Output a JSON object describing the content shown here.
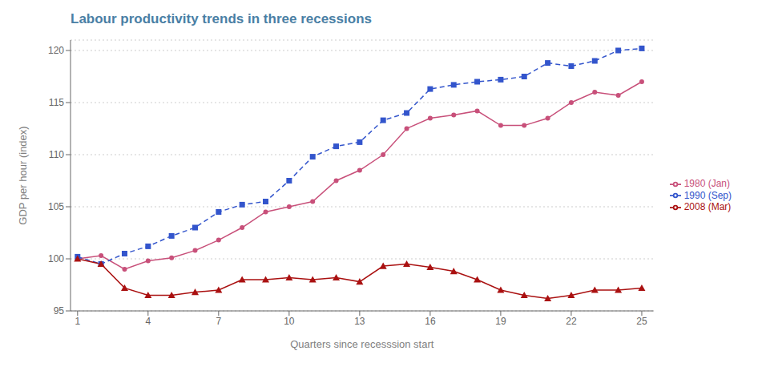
{
  "chart_data": {
    "type": "line",
    "title": "Labour productivity trends in three recessions",
    "x_label": "Quarters since recesssion start",
    "y_label": "GDP per hour (index)",
    "x": [
      1,
      2,
      3,
      4,
      5,
      6,
      7,
      8,
      9,
      10,
      11,
      12,
      13,
      14,
      15,
      16,
      17,
      18,
      19,
      20,
      21,
      22,
      23,
      24,
      25
    ],
    "series": [
      {
        "name": "1980 (Jan)",
        "color": "#c8507a",
        "line_style": "solid",
        "marker": "circle",
        "values": [
          100.0,
          100.3,
          99.0,
          99.8,
          100.1,
          100.8,
          101.8,
          103.0,
          104.5,
          105.0,
          105.5,
          107.5,
          108.5,
          110.0,
          112.5,
          113.5,
          113.8,
          114.2,
          112.8,
          112.8,
          113.5,
          115.0,
          116.0,
          115.7,
          117.0
        ]
      },
      {
        "name": "1990 (Sep)",
        "color": "#3355cc",
        "line_style": "dashed",
        "marker": "square",
        "values": [
          100.2,
          99.5,
          100.5,
          101.2,
          102.2,
          103.0,
          104.5,
          105.2,
          105.5,
          107.5,
          109.8,
          110.8,
          111.2,
          113.3,
          114.0,
          116.3,
          116.7,
          117.0,
          117.2,
          117.5,
          118.8,
          118.5,
          119.0,
          120.0,
          120.2
        ]
      },
      {
        "name": "2008 (Mar)",
        "color": "#aa1111",
        "line_style": "solid",
        "marker": "triangle",
        "values": [
          100.0,
          99.5,
          97.2,
          96.5,
          96.5,
          96.8,
          97.0,
          98.0,
          98.0,
          98.2,
          98.0,
          98.2,
          97.8,
          99.3,
          99.5,
          99.2,
          98.8,
          98.0,
          97.0,
          96.5,
          96.2,
          96.5,
          97.0,
          97.0,
          97.2
        ]
      }
    ],
    "xlim": [
      0.7,
      25.5
    ],
    "xticks": [
      1,
      4,
      7,
      10,
      13,
      16,
      19,
      22,
      25
    ],
    "ylim": [
      95,
      121
    ],
    "yticks": [
      95,
      100,
      105,
      110,
      115,
      120
    ],
    "grid": true,
    "legend": "right"
  }
}
